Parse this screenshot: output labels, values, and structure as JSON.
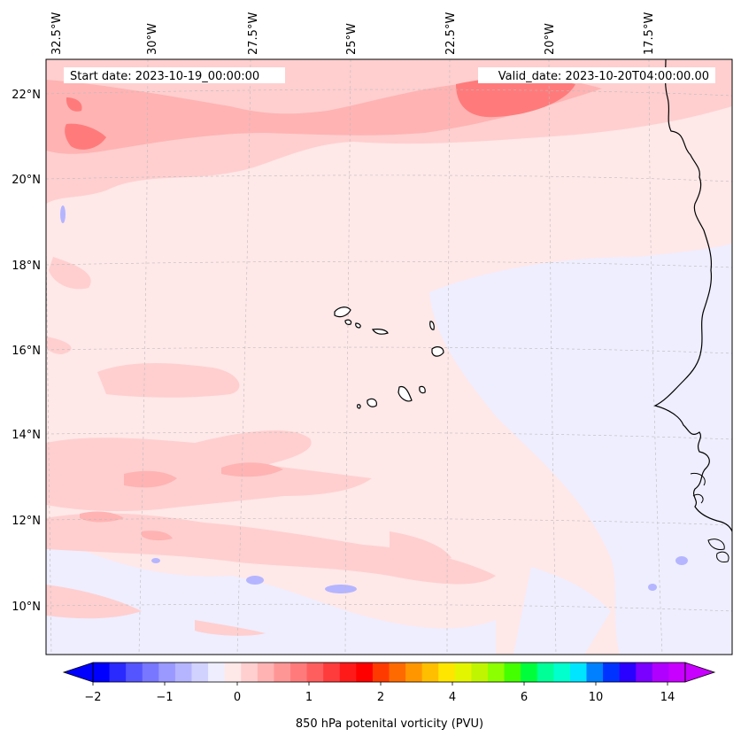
{
  "map": {
    "start_date": "Start date: 2023-10-19_00:00:00",
    "valid_date": "Valid_date: 2023-10-20T04:00:00.00",
    "lon_labels": [
      "32.5°W",
      "30°W",
      "27.5°W",
      "25°W",
      "22.5°W",
      "20°W",
      "17.5°W"
    ],
    "lat_labels": [
      "22°N",
      "20°N",
      "18°N",
      "16°N",
      "14°N",
      "12°N",
      "10°N"
    ],
    "background_color": "#ffe8e8",
    "coastline_color": "#000000"
  },
  "colorbar": {
    "label": "850 hPa potenital vorticity (PVU)",
    "tick_labels": [
      "−2",
      "−1",
      "0",
      "1",
      "2",
      "4",
      "6",
      "10",
      "14"
    ],
    "colors": [
      "#0000ff",
      "#2a2aff",
      "#5555ff",
      "#7777ff",
      "#9999ff",
      "#b5b5ff",
      "#d2d2ff",
      "#eeeeff",
      "#ffe8e8",
      "#ffcfcf",
      "#ffb3b3",
      "#ff9696",
      "#ff7b7b",
      "#ff5e5e",
      "#ff3c3c",
      "#ff1a1a",
      "#ff0000",
      "#ff3a00",
      "#ff6a00",
      "#ff9600",
      "#ffbe00",
      "#ffe600",
      "#e4f500",
      "#bff500",
      "#8cff00",
      "#44ff00",
      "#00ff3a",
      "#00ff96",
      "#00ffcc",
      "#00e5ff",
      "#0080ff",
      "#0033ff",
      "#2a00ff",
      "#7a00ff",
      "#b000ff",
      "#c800ff"
    ]
  }
}
